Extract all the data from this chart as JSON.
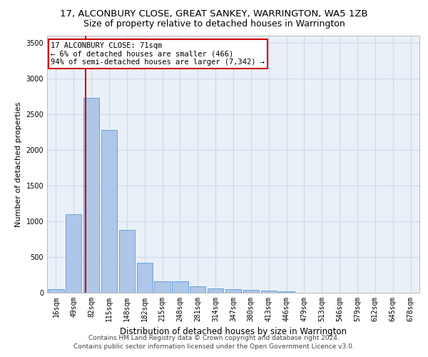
{
  "title1": "17, ALCONBURY CLOSE, GREAT SANKEY, WARRINGTON, WA5 1ZB",
  "title2": "Size of property relative to detached houses in Warrington",
  "xlabel": "Distribution of detached houses by size in Warrington",
  "ylabel": "Number of detached properties",
  "categories": [
    "16sqm",
    "49sqm",
    "82sqm",
    "115sqm",
    "148sqm",
    "182sqm",
    "215sqm",
    "248sqm",
    "281sqm",
    "314sqm",
    "347sqm",
    "380sqm",
    "413sqm",
    "446sqm",
    "479sqm",
    "513sqm",
    "546sqm",
    "579sqm",
    "612sqm",
    "645sqm",
    "678sqm"
  ],
  "values": [
    55,
    1100,
    2730,
    2280,
    880,
    420,
    165,
    160,
    90,
    60,
    50,
    45,
    30,
    25,
    0,
    0,
    0,
    0,
    0,
    0,
    0
  ],
  "bar_color": "#aec6e8",
  "bar_edge_color": "#5b9bd5",
  "annotation_title": "17 ALCONBURY CLOSE: 71sqm",
  "annotation_line2": "← 6% of detached houses are smaller (466)",
  "annotation_line3": "94% of semi-detached houses are larger (7,342) →",
  "annotation_box_color": "#ffffff",
  "annotation_box_edgecolor": "#cc0000",
  "vline_color": "#cc0000",
  "grid_color": "#d0d8e8",
  "background_color": "#eaf0f8",
  "ylim": [
    0,
    3600
  ],
  "yticks": [
    0,
    500,
    1000,
    1500,
    2000,
    2500,
    3000,
    3500
  ],
  "footer1": "Contains HM Land Registry data © Crown copyright and database right 2024.",
  "footer2": "Contains public sector information licensed under the Open Government Licence v3.0.",
  "title1_fontsize": 9.5,
  "title2_fontsize": 9,
  "xlabel_fontsize": 8.5,
  "ylabel_fontsize": 8,
  "tick_fontsize": 7,
  "footer_fontsize": 6.5,
  "annotation_fontsize": 7.5
}
